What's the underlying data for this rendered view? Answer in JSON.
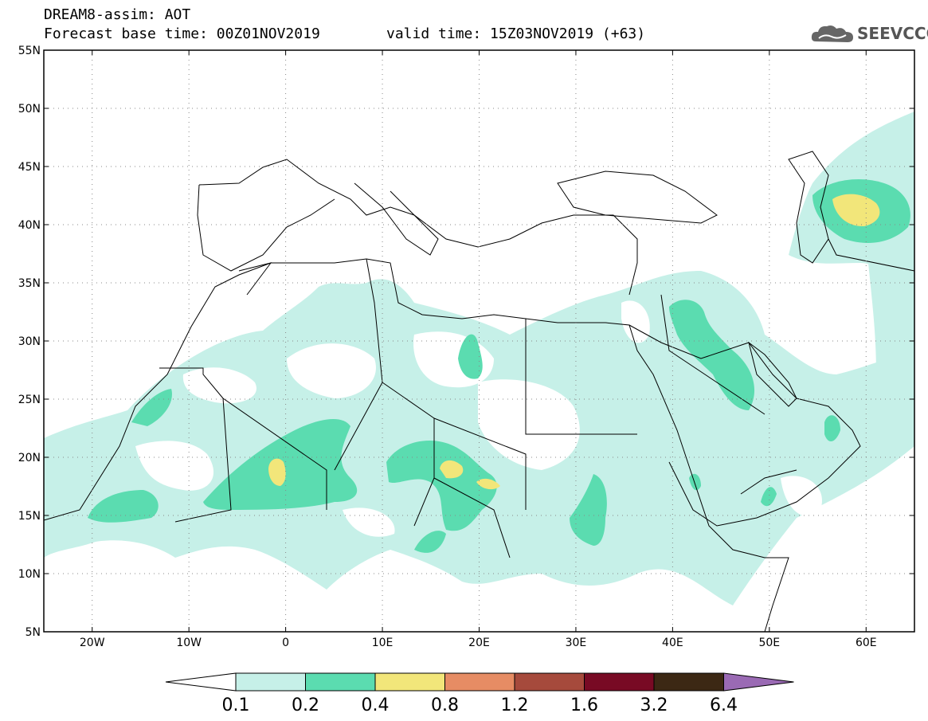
{
  "header": {
    "title": "DREAM8-assim: AOT",
    "base_time": "Forecast base time: 00Z01NOV2019",
    "valid_time": "valid time: 15Z03NOV2019 (+63)",
    "logo_text": "SEEVCCC"
  },
  "map": {
    "lon_range": [
      -25,
      65
    ],
    "lat_range": [
      5,
      55
    ],
    "lat_ticks": [
      {
        "value": 55,
        "label": "55N"
      },
      {
        "value": 50,
        "label": "50N"
      },
      {
        "value": 45,
        "label": "45N"
      },
      {
        "value": 40,
        "label": "40N"
      },
      {
        "value": 35,
        "label": "35N"
      },
      {
        "value": 30,
        "label": "30N"
      },
      {
        "value": 25,
        "label": "25N"
      },
      {
        "value": 20,
        "label": "20N"
      },
      {
        "value": 15,
        "label": "15N"
      },
      {
        "value": 10,
        "label": "10N"
      },
      {
        "value": 5,
        "label": "5N"
      }
    ],
    "lon_ticks": [
      {
        "value": -20,
        "label": "20W"
      },
      {
        "value": -10,
        "label": "10W"
      },
      {
        "value": 0,
        "label": "0"
      },
      {
        "value": 10,
        "label": "10E"
      },
      {
        "value": 20,
        "label": "20E"
      },
      {
        "value": 30,
        "label": "30E"
      },
      {
        "value": 40,
        "label": "40E"
      },
      {
        "value": 50,
        "label": "50E"
      },
      {
        "value": 60,
        "label": "60E"
      }
    ]
  },
  "colorbar": {
    "labels": [
      "0.1",
      "0.2",
      "0.4",
      "0.8",
      "1.2",
      "1.6",
      "3.2",
      "6.4"
    ],
    "colors": [
      "#c6f0e8",
      "#5bdcb0",
      "#f2e67a",
      "#e68c64",
      "#a64a3c",
      "#780a24",
      "#3c2814",
      "#9a6ab4"
    ]
  },
  "colors": {
    "light": "#c6f0e8",
    "medium": "#5bdcb0",
    "high": "#f2e67a"
  }
}
